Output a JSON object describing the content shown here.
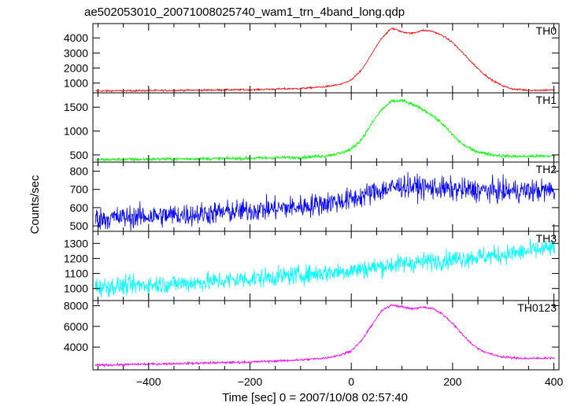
{
  "chart_data": {
    "type": "line",
    "title": "ae502053010_20071008025740_wam1_trn_4band_long.qdp",
    "ylabel": "Counts/sec",
    "xlabel": "Time [sec] 0 = 2007/10/08 02:57:40",
    "xlim": [
      -510,
      410
    ],
    "x_ticks": [
      -400,
      -200,
      0,
      200,
      400
    ],
    "grid": false,
    "panels": [
      {
        "name": "TH0",
        "color": "#ff0000",
        "ylim": [
          350,
          4950
        ],
        "y_ticks": [
          1000,
          2000,
          3000,
          4000
        ],
        "x": [
          -500,
          -400,
          -300,
          -200,
          -100,
          -50,
          -20,
          0,
          20,
          40,
          60,
          80,
          100,
          120,
          140,
          160,
          180,
          200,
          220,
          240,
          260,
          280,
          300,
          320,
          350,
          400
        ],
        "values": [
          480,
          500,
          530,
          560,
          640,
          760,
          920,
          1200,
          1850,
          2900,
          4000,
          4650,
          4400,
          4300,
          4500,
          4450,
          4150,
          3700,
          3000,
          2300,
          1650,
          1150,
          800,
          600,
          520,
          540
        ],
        "noise": 40
      },
      {
        "name": "TH1",
        "color": "#00ff00",
        "ylim": [
          350,
          1800
        ],
        "y_ticks": [
          500,
          1000,
          1500
        ],
        "x": [
          -500,
          -400,
          -300,
          -200,
          -100,
          -50,
          -20,
          0,
          20,
          40,
          60,
          80,
          100,
          120,
          140,
          160,
          180,
          200,
          220,
          240,
          260,
          280,
          300,
          320,
          350,
          400
        ],
        "values": [
          400,
          410,
          420,
          430,
          450,
          480,
          540,
          620,
          820,
          1150,
          1450,
          1620,
          1640,
          1560,
          1460,
          1330,
          1150,
          920,
          720,
          600,
          540,
          500,
          480,
          470,
          470,
          480
        ],
        "noise": 25
      },
      {
        "name": "TH2",
        "color": "#0000ff",
        "ylim": [
          470,
          850
        ],
        "y_ticks": [
          500,
          600,
          700,
          800
        ],
        "x": [
          -500,
          -300,
          -100,
          0,
          50,
          100,
          150,
          200,
          300,
          400
        ],
        "values": [
          540,
          565,
          605,
          645,
          690,
          720,
          710,
          700,
          690,
          695
        ],
        "noise": 45
      },
      {
        "name": "TH3",
        "color": "#00ffff",
        "ylim": [
          920,
          1380
        ],
        "y_ticks": [
          1000,
          1100,
          1200,
          1300
        ],
        "x": [
          -500,
          -300,
          -100,
          0,
          100,
          200,
          300,
          400
        ],
        "values": [
          1010,
          1040,
          1090,
          1120,
          1165,
          1195,
          1225,
          1270
        ],
        "noise": 45
      },
      {
        "name": "TH0123",
        "color": "#ff00ff",
        "ylim": [
          1800,
          8500
        ],
        "y_ticks": [
          4000,
          6000,
          8000
        ],
        "x": [
          -500,
          -400,
          -300,
          -200,
          -100,
          -50,
          -20,
          0,
          20,
          40,
          60,
          80,
          100,
          120,
          140,
          160,
          180,
          200,
          220,
          240,
          260,
          280,
          300,
          320,
          350,
          400
        ],
        "values": [
          2250,
          2350,
          2450,
          2550,
          2750,
          2950,
          3250,
          3650,
          4600,
          6100,
          7500,
          8100,
          7900,
          7700,
          7850,
          7750,
          7200,
          6300,
          5200,
          4200,
          3600,
          3250,
          3050,
          2950,
          2900,
          2950
        ],
        "noise": 80
      }
    ]
  }
}
